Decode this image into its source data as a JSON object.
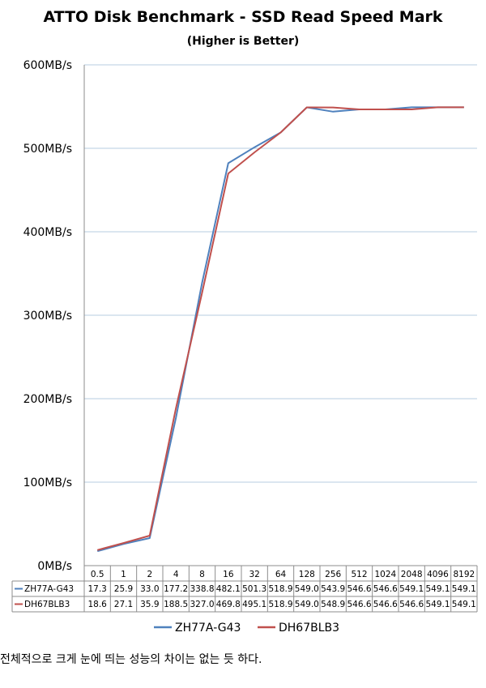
{
  "chart_data": {
    "type": "line",
    "title": "ATTO Disk Benchmark - SSD Read Speed Mark",
    "subtitle": "(Higher is Better)",
    "categories": [
      "0.5",
      "1",
      "2",
      "4",
      "8",
      "16",
      "32",
      "64",
      "128",
      "256",
      "512",
      "1024",
      "2048",
      "4096",
      "8192"
    ],
    "y_ticks": [
      "0MB/s",
      "100MB/s",
      "200MB/s",
      "300MB/s",
      "400MB/s",
      "500MB/s",
      "600MB/s"
    ],
    "ylim": [
      0,
      600
    ],
    "grid": true,
    "legend_position": "bottom",
    "data_table": true,
    "series": [
      {
        "name": "ZH77A-G43",
        "color": "#4F81BD",
        "values": [
          17.3,
          25.9,
          33.0,
          177.2,
          338.8,
          482.1,
          501.3,
          518.9,
          549.0,
          543.9,
          546.6,
          546.6,
          549.1,
          549.1,
          549.1
        ]
      },
      {
        "name": "DH67BLB3",
        "color": "#C0504D",
        "values": [
          18.6,
          27.1,
          35.9,
          188.5,
          327.0,
          469.8,
          495.1,
          518.9,
          549.0,
          548.9,
          546.6,
          546.6,
          546.6,
          549.1,
          549.1
        ]
      }
    ]
  },
  "caption": "전체적으로 크게 눈에 띄는 성능의 차이는 없는 듯 하다."
}
